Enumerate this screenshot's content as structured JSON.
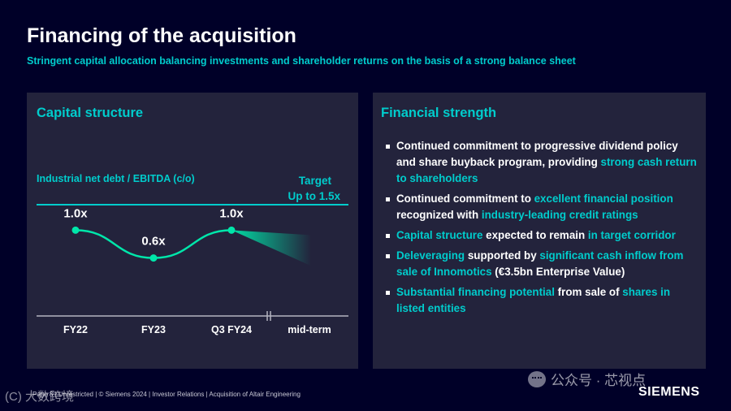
{
  "slide": {
    "title": "Financing of the acquisition",
    "subtitle": "Stringent capital allocation balancing investments and shareholder returns on the basis of a strong balance sheet"
  },
  "left_panel": {
    "title": "Capital structure"
  },
  "chart_data": {
    "type": "line",
    "ylabel": "Industrial net debt / EBITDA (c/o)",
    "categories": [
      "FY22",
      "FY23",
      "Q3 FY24",
      "mid-term"
    ],
    "series": [
      {
        "values": [
          1.0,
          0.6,
          1.0,
          null
        ]
      }
    ],
    "data_labels": [
      "1.0x",
      "0.6x",
      "1.0x"
    ],
    "target": {
      "label_line1": "Target",
      "label_line2": "Up to 1.5x",
      "value": 1.5
    },
    "ylim": [
      0,
      1.6
    ],
    "axis_break_between": [
      "Q3 FY24",
      "mid-term"
    ],
    "colors": {
      "line": "#00e6aa",
      "target_line": "#00cccc",
      "label": "#00cccc"
    }
  },
  "right_panel": {
    "title": "Financial strength",
    "bullets": [
      [
        {
          "t": "Continued commitment to progressive dividend policy and share buyback program, providing ",
          "h": false
        },
        {
          "t": "strong cash return to shareholders",
          "h": true
        }
      ],
      [
        {
          "t": "Continued commitment to ",
          "h": false
        },
        {
          "t": "excellent financial position",
          "h": true
        },
        {
          "t": " recognized with ",
          "h": false
        },
        {
          "t": "industry-leading credit ratings",
          "h": true
        }
      ],
      [
        {
          "t": "Capital structure",
          "h": true
        },
        {
          "t": " expected to remain ",
          "h": false
        },
        {
          "t": "in target corridor",
          "h": true
        }
      ],
      [
        {
          "t": "Deleveraging",
          "h": true
        },
        {
          "t": " supported by ",
          "h": false
        },
        {
          "t": "significant cash inflow from sale of Innomotics",
          "h": true
        },
        {
          "t": " (€3.5bn Enterprise Value)",
          "h": false
        }
      ],
      [
        {
          "t": "Substantial financing potential",
          "h": true
        },
        {
          "t": " from sale of ",
          "h": false
        },
        {
          "t": "shares in listed entities",
          "h": true
        }
      ]
    ]
  },
  "footer": {
    "text": "Page 8 | Unrestricted | © Siemens 2024 | Investor Relations | Acquisition of Altair Engineering"
  },
  "watermarks": {
    "left": "(C) 大数跨境",
    "right": "公众号 · 芯视点",
    "right_icon": "wechat-icon"
  },
  "brand": {
    "logo_text": "SIEMENS",
    "background": "#000028",
    "panel": "#23233c",
    "accent": "#00cccc"
  }
}
